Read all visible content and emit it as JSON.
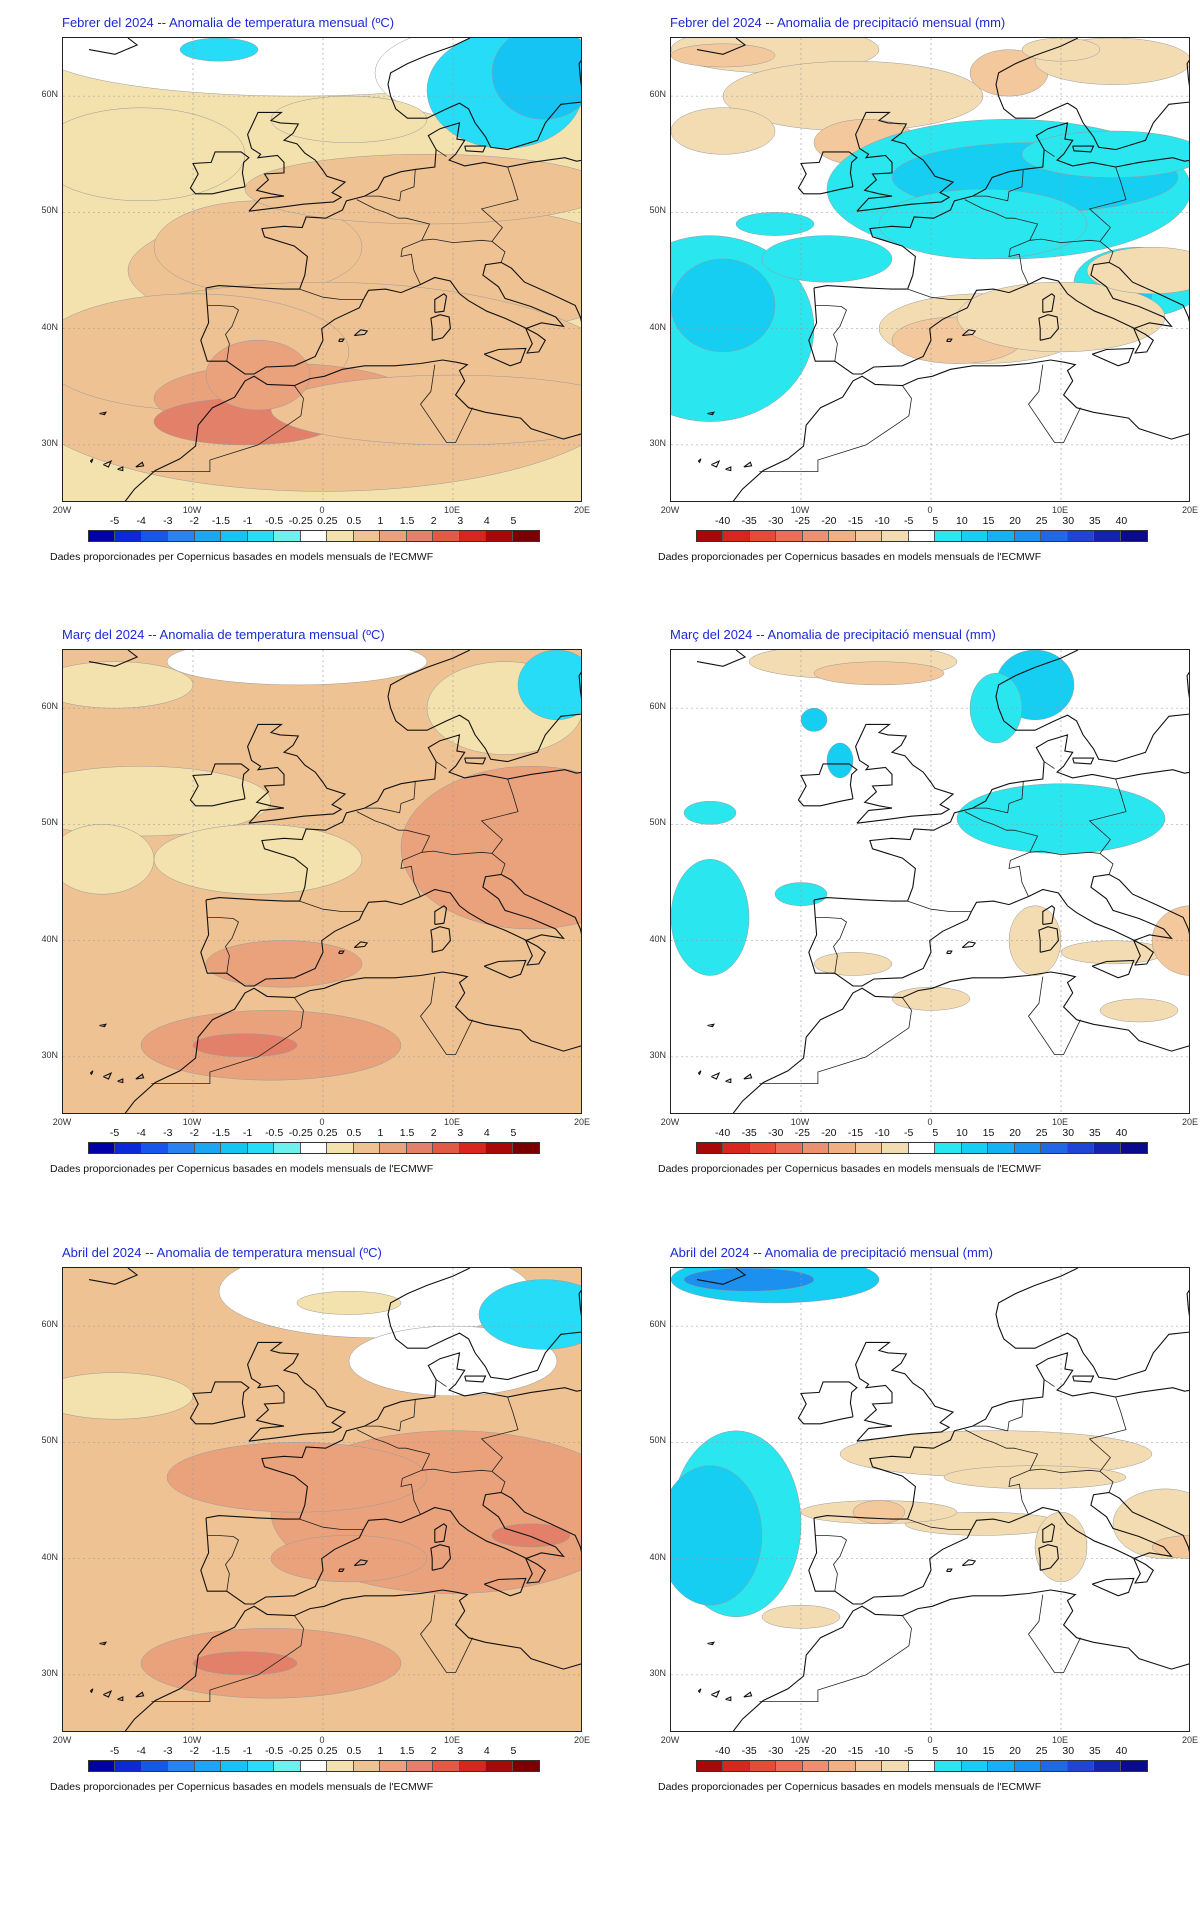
{
  "temp_scale": {
    "labels": [
      "-5",
      "-4",
      "-3",
      "-2",
      "-1.5",
      "-1",
      "-0.5",
      "-0.25",
      "0.25",
      "0.5",
      "1",
      "1.5",
      "2",
      "3",
      "4",
      "5"
    ],
    "colors": [
      "#0000a8",
      "#0a2ad8",
      "#1756e8",
      "#2a82f0",
      "#1aa6f2",
      "#16c4f4",
      "#27dcf6",
      "#6ef0ee",
      "#ffffff",
      "#f3e2ae",
      "#eec292",
      "#eaa27c",
      "#e2806a",
      "#e05a46",
      "#d8261e",
      "#a80808",
      "#7a0000"
    ]
  },
  "precip_scale": {
    "labels": [
      "-40",
      "-35",
      "-30",
      "-25",
      "-20",
      "-15",
      "-10",
      "-5",
      "5",
      "10",
      "15",
      "20",
      "25",
      "30",
      "35",
      "40"
    ],
    "colors": [
      "#a80808",
      "#d8261e",
      "#e84a38",
      "#ea6e58",
      "#ec9070",
      "#f0b084",
      "#f3c89c",
      "#f4dcb2",
      "#ffffff",
      "#2ae6ee",
      "#16cdf2",
      "#14b2f2",
      "#1c90ee",
      "#2268e4",
      "#1f44d6",
      "#1422b0",
      "#0a0a8c"
    ]
  },
  "axes": {
    "lat_labels": [
      "60N",
      "50N",
      "40N",
      "30N"
    ],
    "lon_labels": [
      "20W",
      "10W",
      "0",
      "10E",
      "20E"
    ]
  },
  "credit": "Dades proporcionades per Copernicus basades en models mensuals de l'ECMWF",
  "panels": [
    {
      "title": "Febrer del 2024 -- Anomalia de temperatura mensual (ºC)",
      "type": "temperature"
    },
    {
      "title": "Febrer del 2024 -- Anomalia de precipitació mensual (mm)",
      "type": "precipitation"
    },
    {
      "title": "Març del 2024 -- Anomalia de temperatura mensual (ºC)",
      "type": "temperature"
    },
    {
      "title": "Març del 2024 -- Anomalia de precipitació mensual (mm)",
      "type": "precipitation"
    },
    {
      "title": "Abril del 2024 -- Anomalia de temperatura mensual (ºC)",
      "type": "temperature"
    },
    {
      "title": "Abril del 2024 -- Anomalia de precipitació mensual (mm)",
      "type": "precipitation"
    }
  ]
}
